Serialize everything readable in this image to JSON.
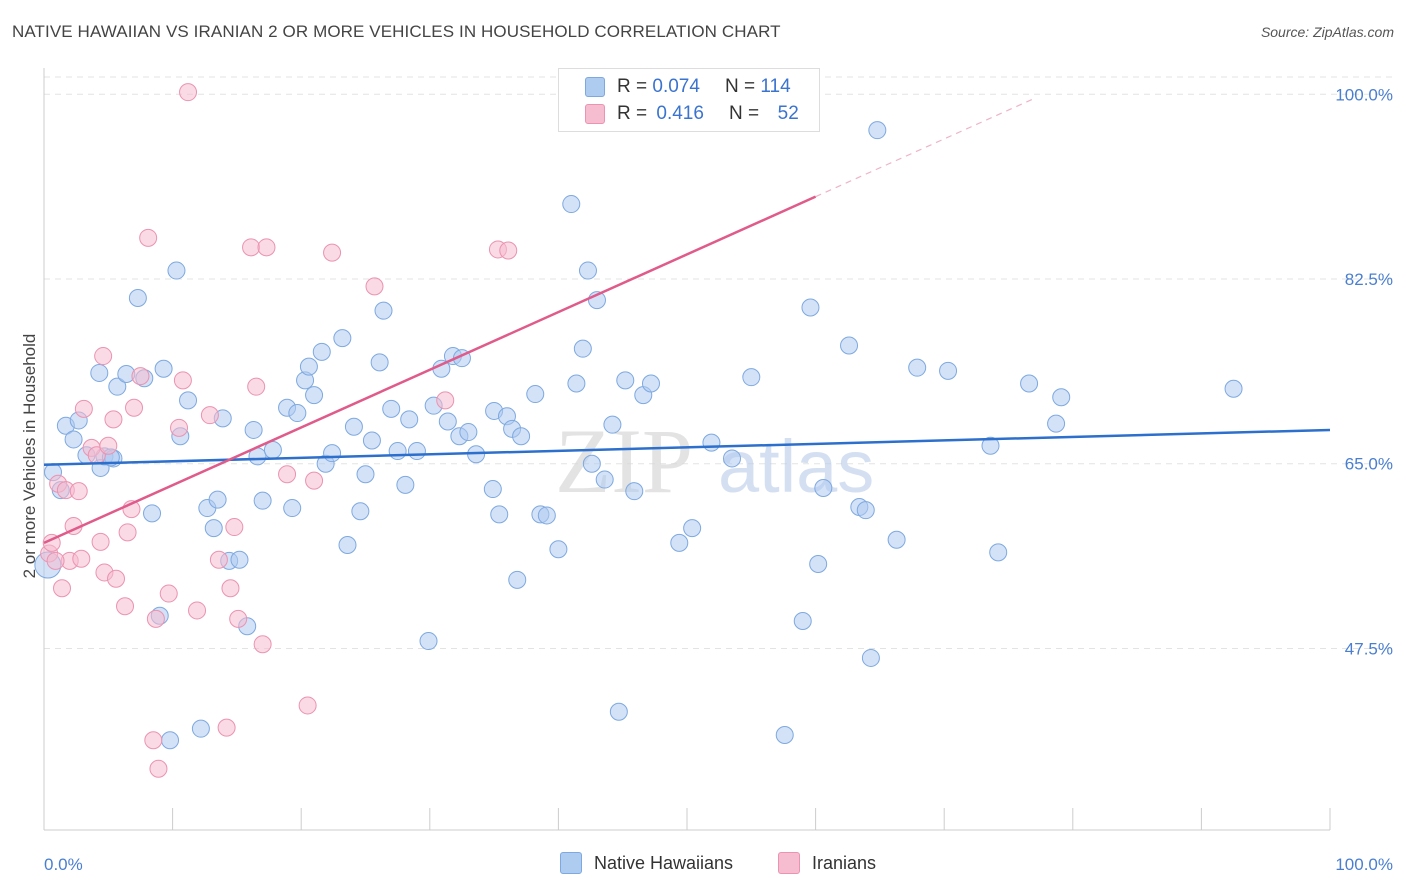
{
  "header": {
    "title": "NATIVE HAWAIIAN VS IRANIAN 2 OR MORE VEHICLES IN HOUSEHOLD CORRELATION CHART",
    "source": "Source: ZipAtlas.com"
  },
  "legend": {
    "rows": [
      {
        "r_label": "R =",
        "r_value": "0.074",
        "n_label": "N =",
        "n_value": "114",
        "color": "#aecbf0"
      },
      {
        "r_label": "R =",
        "r_value": "0.416",
        "n_label": "N =",
        "n_value": "52",
        "color": "#f6bcd0"
      }
    ]
  },
  "bottom_legend": [
    "Native Hawaiians",
    "Iranians"
  ],
  "watermark": {
    "zip": "ZIP",
    "atlas": "atlas"
  },
  "chart_data": {
    "type": "scatter",
    "title": "NATIVE HAWAIIAN VS IRANIAN 2 OR MORE VEHICLES IN HOUSEHOLD CORRELATION CHART",
    "xlabel": "",
    "ylabel": "2 or more Vehicles in Household",
    "xlim": [
      0,
      100
    ],
    "ylim": [
      30.3,
      102.3
    ],
    "x_tick_labels": [
      "0.0%",
      "100.0%"
    ],
    "y_ticks": [
      47.5,
      65.0,
      82.5,
      100.0
    ],
    "y_tick_labels": [
      "47.5%",
      "65.0%",
      "82.5%",
      "100.0%"
    ],
    "grid": true,
    "legend_position": "top-center",
    "series": [
      {
        "name": "Native Hawaiians",
        "color": "#aecbf0",
        "stroke": "#7ea9e0",
        "line_color": "#2c6fcc",
        "trend": {
          "x": [
            0,
            100
          ],
          "y": [
            64.9,
            68.2
          ]
        },
        "points": [
          [
            0.7,
            64.2
          ],
          [
            1.3,
            62.5
          ],
          [
            1.7,
            68.6
          ],
          [
            2.3,
            67.3
          ],
          [
            2.7,
            69.1
          ],
          [
            3.3,
            65.8
          ],
          [
            4.3,
            73.6
          ],
          [
            4.4,
            64.6
          ],
          [
            4.7,
            65.7
          ],
          [
            5.4,
            65.5
          ],
          [
            5.7,
            72.3
          ],
          [
            6.4,
            73.5
          ],
          [
            7.3,
            80.7
          ],
          [
            7.8,
            73.1
          ],
          [
            8.4,
            60.3
          ],
          [
            9.0,
            50.6
          ],
          [
            9.3,
            74.0
          ],
          [
            9.8,
            38.8
          ],
          [
            10.3,
            83.3
          ],
          [
            10.6,
            67.6
          ],
          [
            11.2,
            71.0
          ],
          [
            12.2,
            39.9
          ],
          [
            12.7,
            60.8
          ],
          [
            13.2,
            58.9
          ],
          [
            13.5,
            61.6
          ],
          [
            13.9,
            69.3
          ],
          [
            14.4,
            55.8
          ],
          [
            15.2,
            55.9
          ],
          [
            15.8,
            49.6
          ],
          [
            16.3,
            68.2
          ],
          [
            16.6,
            65.7
          ],
          [
            17.0,
            61.5
          ],
          [
            17.8,
            66.3
          ],
          [
            18.9,
            70.3
          ],
          [
            19.3,
            60.8
          ],
          [
            19.7,
            69.8
          ],
          [
            20.3,
            72.9
          ],
          [
            20.6,
            74.2
          ],
          [
            21.0,
            71.5
          ],
          [
            21.6,
            75.6
          ],
          [
            21.9,
            65.0
          ],
          [
            22.4,
            66.0
          ],
          [
            23.2,
            76.9
          ],
          [
            23.6,
            57.3
          ],
          [
            24.1,
            68.5
          ],
          [
            24.6,
            60.5
          ],
          [
            25.0,
            64.0
          ],
          [
            25.5,
            67.2
          ],
          [
            26.1,
            74.6
          ],
          [
            26.4,
            79.5
          ],
          [
            27.0,
            70.2
          ],
          [
            27.5,
            66.2
          ],
          [
            28.1,
            63.0
          ],
          [
            28.4,
            69.2
          ],
          [
            29.0,
            66.2
          ],
          [
            29.9,
            48.2
          ],
          [
            30.3,
            70.5
          ],
          [
            30.9,
            74.0
          ],
          [
            31.4,
            69.0
          ],
          [
            31.8,
            75.2
          ],
          [
            32.3,
            67.6
          ],
          [
            32.5,
            75.0
          ],
          [
            33.0,
            68.0
          ],
          [
            33.6,
            65.9
          ],
          [
            34.9,
            62.6
          ],
          [
            35.0,
            70.0
          ],
          [
            35.4,
            60.2
          ],
          [
            36.0,
            69.5
          ],
          [
            36.4,
            68.3
          ],
          [
            36.8,
            54.0
          ],
          [
            37.1,
            67.6
          ],
          [
            38.2,
            71.6
          ],
          [
            38.6,
            60.2
          ],
          [
            39.1,
            60.1
          ],
          [
            40.0,
            56.9
          ],
          [
            41.0,
            89.6
          ],
          [
            41.4,
            72.6
          ],
          [
            41.9,
            75.9
          ],
          [
            42.3,
            83.3
          ],
          [
            42.6,
            65.0
          ],
          [
            43.0,
            80.5
          ],
          [
            43.6,
            63.5
          ],
          [
            44.2,
            68.7
          ],
          [
            44.7,
            41.5
          ],
          [
            45.2,
            72.9
          ],
          [
            45.9,
            62.4
          ],
          [
            46.6,
            71.5
          ],
          [
            47.2,
            72.6
          ],
          [
            49.4,
            57.5
          ],
          [
            50.4,
            58.9
          ],
          [
            51.9,
            67.0
          ],
          [
            53.5,
            65.5
          ],
          [
            55.0,
            73.2
          ],
          [
            57.6,
            39.3
          ],
          [
            59.0,
            50.1
          ],
          [
            59.6,
            79.8
          ],
          [
            60.2,
            55.5
          ],
          [
            60.6,
            62.7
          ],
          [
            62.6,
            76.2
          ],
          [
            63.4,
            60.9
          ],
          [
            63.9,
            60.6
          ],
          [
            64.3,
            46.6
          ],
          [
            64.8,
            96.6
          ],
          [
            66.3,
            57.8
          ],
          [
            67.9,
            74.1
          ],
          [
            70.3,
            73.8
          ],
          [
            73.6,
            66.7
          ],
          [
            74.2,
            56.6
          ],
          [
            76.6,
            72.6
          ],
          [
            78.7,
            68.8
          ],
          [
            79.1,
            71.3
          ],
          [
            92.5,
            72.1
          ],
          [
            0.3,
            55.4
          ],
          [
            5.2,
            65.6
          ]
        ]
      },
      {
        "name": "Iranians",
        "color": "#f6bcd0",
        "stroke": "#eb93b1",
        "line_color": "#e05a8a",
        "trend": {
          "x": [
            0,
            60
          ],
          "y": [
            57.5,
            90.3
          ]
        },
        "trend_dashed": {
          "x": [
            60,
            77
          ],
          "y": [
            90.3,
            99.6
          ]
        },
        "points": [
          [
            0.4,
            56.5
          ],
          [
            0.6,
            57.5
          ],
          [
            1.1,
            63.1
          ],
          [
            1.4,
            53.2
          ],
          [
            1.7,
            62.5
          ],
          [
            2.0,
            55.8
          ],
          [
            2.3,
            59.1
          ],
          [
            2.7,
            62.4
          ],
          [
            3.1,
            70.2
          ],
          [
            3.7,
            66.5
          ],
          [
            4.1,
            65.8
          ],
          [
            4.4,
            57.6
          ],
          [
            4.6,
            75.2
          ],
          [
            4.7,
            54.7
          ],
          [
            5.0,
            66.7
          ],
          [
            5.4,
            69.2
          ],
          [
            5.6,
            54.1
          ],
          [
            6.3,
            51.5
          ],
          [
            6.5,
            58.5
          ],
          [
            6.8,
            60.7
          ],
          [
            7.0,
            70.3
          ],
          [
            7.5,
            73.3
          ],
          [
            8.1,
            86.4
          ],
          [
            8.5,
            38.8
          ],
          [
            8.7,
            50.3
          ],
          [
            8.9,
            36.1
          ],
          [
            9.7,
            52.7
          ],
          [
            10.5,
            68.4
          ],
          [
            10.8,
            72.9
          ],
          [
            11.2,
            100.2
          ],
          [
            11.9,
            51.1
          ],
          [
            12.9,
            69.6
          ],
          [
            13.6,
            55.9
          ],
          [
            14.2,
            40.0
          ],
          [
            14.5,
            53.2
          ],
          [
            14.8,
            59.0
          ],
          [
            15.1,
            50.3
          ],
          [
            16.1,
            85.5
          ],
          [
            16.5,
            72.3
          ],
          [
            17.0,
            47.9
          ],
          [
            17.3,
            85.5
          ],
          [
            18.9,
            64.0
          ],
          [
            20.5,
            42.1
          ],
          [
            21.0,
            63.4
          ],
          [
            22.4,
            85.0
          ],
          [
            25.7,
            81.8
          ],
          [
            31.2,
            71.0
          ],
          [
            35.3,
            85.3
          ],
          [
            36.1,
            85.2
          ],
          [
            52.1,
            100.3
          ],
          [
            2.9,
            56.0
          ],
          [
            0.9,
            55.8
          ]
        ]
      }
    ]
  }
}
